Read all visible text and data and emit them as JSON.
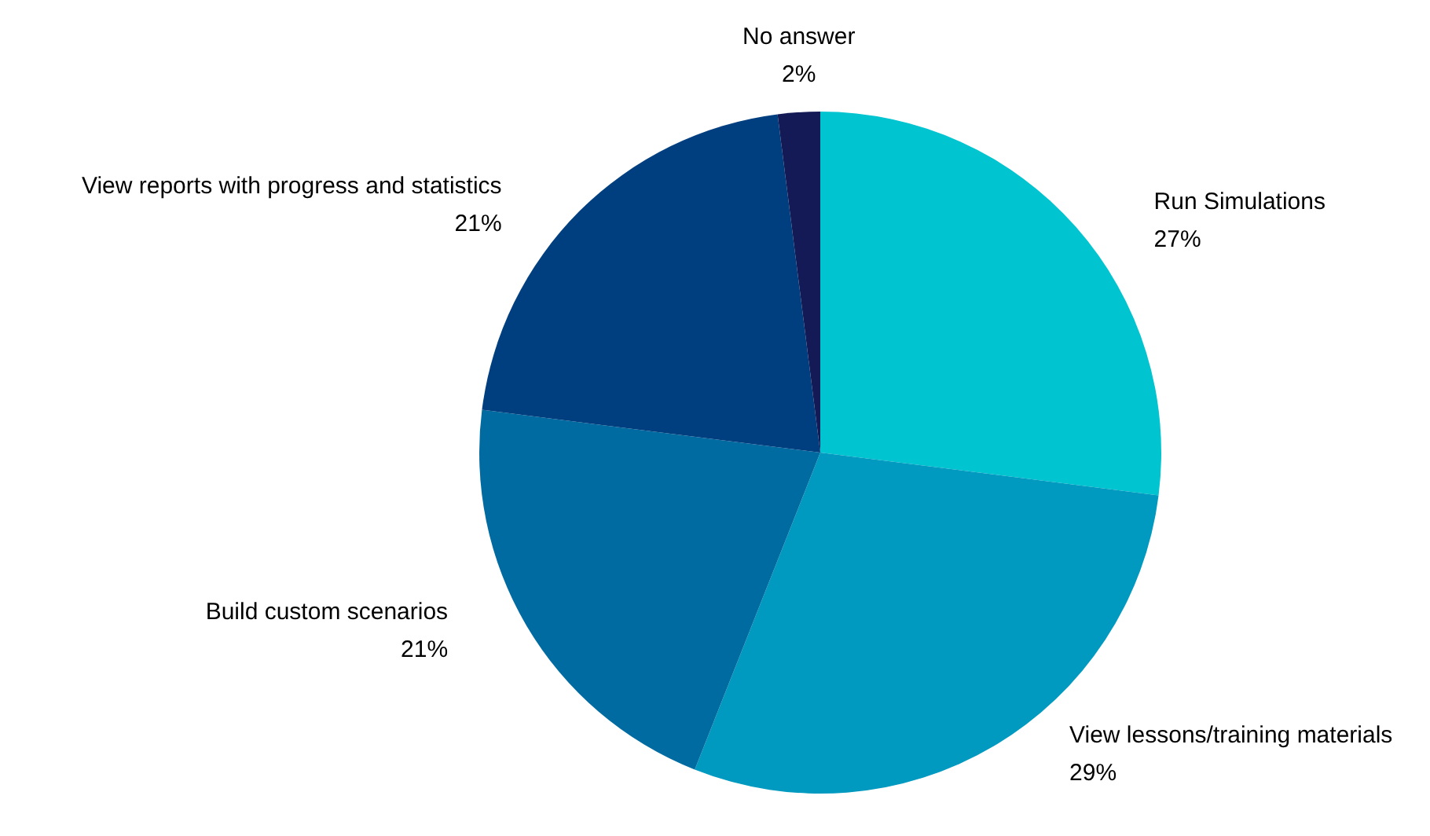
{
  "chart_data": {
    "type": "pie",
    "categories": [
      "Run Simulations",
      "View lessons/training materials",
      "Build custom scenarios",
      "View reports with progress and statistics",
      "No answer"
    ],
    "values": [
      27,
      29,
      21,
      21,
      2
    ],
    "colors": [
      "#00c4cf",
      "#0099bf",
      "#006ba1",
      "#003f7f",
      "#141a55"
    ],
    "value_labels": [
      "27%",
      "29%",
      "21%",
      "21%",
      "2%"
    ]
  }
}
